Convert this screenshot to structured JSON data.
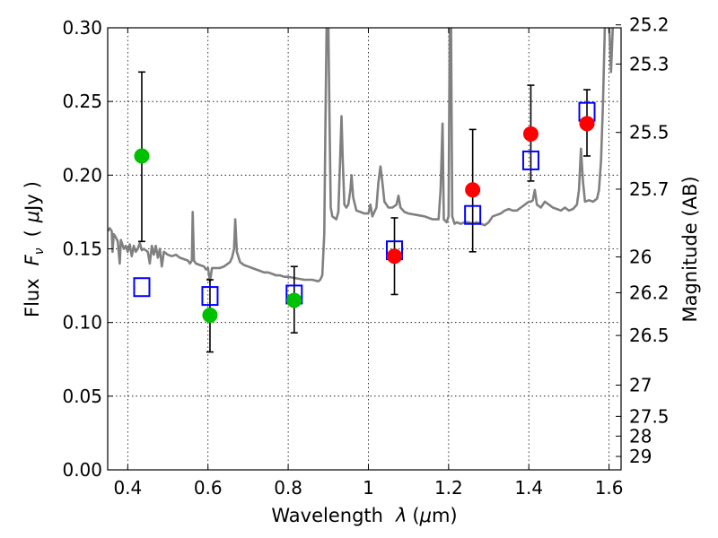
{
  "chart_data": {
    "type": "scatter",
    "xlabel_text": "Wavelength",
    "xlabel_symbol": "λ",
    "xlabel_unit_open": "(",
    "xlabel_unit_mu": "μ",
    "xlabel_unit_rest": "m)",
    "ylabel_text": "Flux",
    "ylabel_symbol": "F",
    "ylabel_sub": "ν",
    "ylabel_unit_open": "(",
    "ylabel_unit_mu": "μ",
    "ylabel_unit_rest": "Jy",
    "ylabel_unit_close": ")",
    "ylabel_right": "Magnitude (AB)",
    "xlim": [
      0.35,
      1.63
    ],
    "ylim": [
      0.0,
      0.3
    ],
    "grid": true,
    "x_ticks": [
      {
        "value": 0.4,
        "label": "0.4"
      },
      {
        "value": 0.6,
        "label": "0.6"
      },
      {
        "value": 0.8,
        "label": "0.8"
      },
      {
        "value": 1.0,
        "label": "1"
      },
      {
        "value": 1.2,
        "label": "1.2"
      },
      {
        "value": 1.4,
        "label": "1.4"
      },
      {
        "value": 1.6,
        "label": "1.6"
      }
    ],
    "y_ticks": [
      {
        "value": 0.0,
        "label": "0.00"
      },
      {
        "value": 0.05,
        "label": "0.05"
      },
      {
        "value": 0.1,
        "label": "0.10"
      },
      {
        "value": 0.15,
        "label": "0.15"
      },
      {
        "value": 0.2,
        "label": "0.20"
      },
      {
        "value": 0.25,
        "label": "0.25"
      },
      {
        "value": 0.3,
        "label": "0.30"
      }
    ],
    "mag_ticks": [
      {
        "label": "25.2",
        "flux": 0.302
      },
      {
        "label": "25.3",
        "flux": 0.2754
      },
      {
        "label": "25.5",
        "flux": 0.229
      },
      {
        "label": "25.7",
        "flux": 0.1905
      },
      {
        "label": "26",
        "flux": 0.1445
      },
      {
        "label": "26.2",
        "flux": 0.1202
      },
      {
        "label": "26.5",
        "flux": 0.0912
      },
      {
        "label": "27",
        "flux": 0.0575
      },
      {
        "label": "27.5",
        "flux": 0.0363
      },
      {
        "label": "28",
        "flux": 0.0229
      },
      {
        "label": "29",
        "flux": 0.0091
      }
    ],
    "series": [
      {
        "kind": "line",
        "color": "#808080",
        "points": [
          [
            0.35,
            0.162
          ],
          [
            0.355,
            0.164
          ],
          [
            0.36,
            0.162
          ],
          [
            0.362,
            0.148
          ],
          [
            0.365,
            0.16
          ],
          [
            0.37,
            0.158
          ],
          [
            0.375,
            0.155
          ],
          [
            0.38,
            0.14
          ],
          [
            0.383,
            0.156
          ],
          [
            0.39,
            0.15
          ],
          [
            0.395,
            0.152
          ],
          [
            0.4,
            0.148
          ],
          [
            0.405,
            0.153
          ],
          [
            0.41,
            0.145
          ],
          [
            0.415,
            0.152
          ],
          [
            0.42,
            0.148
          ],
          [
            0.425,
            0.15
          ],
          [
            0.43,
            0.154
          ],
          [
            0.435,
            0.149
          ],
          [
            0.44,
            0.15
          ],
          [
            0.45,
            0.148
          ],
          [
            0.455,
            0.14
          ],
          [
            0.46,
            0.152
          ],
          [
            0.465,
            0.146
          ],
          [
            0.47,
            0.152
          ],
          [
            0.475,
            0.144
          ],
          [
            0.48,
            0.15
          ],
          [
            0.485,
            0.138
          ],
          [
            0.49,
            0.148
          ],
          [
            0.5,
            0.146
          ],
          [
            0.51,
            0.145
          ],
          [
            0.52,
            0.146
          ],
          [
            0.53,
            0.144
          ],
          [
            0.54,
            0.143
          ],
          [
            0.55,
            0.142
          ],
          [
            0.555,
            0.14
          ],
          [
            0.56,
            0.142
          ],
          [
            0.562,
            0.175
          ],
          [
            0.565,
            0.142
          ],
          [
            0.57,
            0.14
          ],
          [
            0.58,
            0.139
          ],
          [
            0.59,
            0.138
          ],
          [
            0.595,
            0.136
          ],
          [
            0.6,
            0.137
          ],
          [
            0.605,
            0.128
          ],
          [
            0.61,
            0.137
          ],
          [
            0.62,
            0.137
          ],
          [
            0.63,
            0.137
          ],
          [
            0.64,
            0.138
          ],
          [
            0.65,
            0.14
          ],
          [
            0.655,
            0.141
          ],
          [
            0.66,
            0.144
          ],
          [
            0.665,
            0.15
          ],
          [
            0.668,
            0.17
          ],
          [
            0.672,
            0.148
          ],
          [
            0.68,
            0.141
          ],
          [
            0.69,
            0.139
          ],
          [
            0.7,
            0.138
          ],
          [
            0.71,
            0.137
          ],
          [
            0.72,
            0.136
          ],
          [
            0.73,
            0.135
          ],
          [
            0.74,
            0.134
          ],
          [
            0.75,
            0.134
          ],
          [
            0.76,
            0.133
          ],
          [
            0.77,
            0.132
          ],
          [
            0.78,
            0.132
          ],
          [
            0.79,
            0.131
          ],
          [
            0.8,
            0.131
          ],
          [
            0.82,
            0.13
          ],
          [
            0.84,
            0.129
          ],
          [
            0.86,
            0.129
          ],
          [
            0.875,
            0.128
          ],
          [
            0.88,
            0.129
          ],
          [
            0.885,
            0.132
          ],
          [
            0.89,
            0.16
          ],
          [
            0.893,
            0.24
          ],
          [
            0.896,
            0.305
          ],
          [
            0.9,
            0.305
          ],
          [
            0.903,
            0.24
          ],
          [
            0.906,
            0.178
          ],
          [
            0.91,
            0.172
          ],
          [
            0.92,
            0.17
          ],
          [
            0.925,
            0.175
          ],
          [
            0.93,
            0.215
          ],
          [
            0.933,
            0.24
          ],
          [
            0.936,
            0.21
          ],
          [
            0.94,
            0.18
          ],
          [
            0.945,
            0.178
          ],
          [
            0.95,
            0.18
          ],
          [
            0.955,
            0.19
          ],
          [
            0.958,
            0.2
          ],
          [
            0.962,
            0.185
          ],
          [
            0.97,
            0.176
          ],
          [
            0.98,
            0.175
          ],
          [
            0.99,
            0.174
          ],
          [
            1.0,
            0.174
          ],
          [
            1.005,
            0.18
          ],
          [
            1.01,
            0.172
          ],
          [
            1.02,
            0.178
          ],
          [
            1.025,
            0.195
          ],
          [
            1.03,
            0.206
          ],
          [
            1.035,
            0.195
          ],
          [
            1.04,
            0.182
          ],
          [
            1.05,
            0.178
          ],
          [
            1.06,
            0.178
          ],
          [
            1.07,
            0.18
          ],
          [
            1.075,
            0.186
          ],
          [
            1.08,
            0.178
          ],
          [
            1.09,
            0.175
          ],
          [
            1.1,
            0.174
          ],
          [
            1.12,
            0.173
          ],
          [
            1.14,
            0.172
          ],
          [
            1.16,
            0.17
          ],
          [
            1.175,
            0.17
          ],
          [
            1.18,
            0.19
          ],
          [
            1.185,
            0.235
          ],
          [
            1.188,
            0.17
          ],
          [
            1.195,
            0.168
          ],
          [
            1.2,
            0.172
          ],
          [
            1.203,
            0.305
          ],
          [
            1.206,
            0.305
          ],
          [
            1.209,
            0.172
          ],
          [
            1.215,
            0.167
          ],
          [
            1.22,
            0.168
          ],
          [
            1.23,
            0.167
          ],
          [
            1.24,
            0.168
          ],
          [
            1.25,
            0.168
          ],
          [
            1.26,
            0.167
          ],
          [
            1.27,
            0.168
          ],
          [
            1.28,
            0.167
          ],
          [
            1.29,
            0.166
          ],
          [
            1.3,
            0.168
          ],
          [
            1.31,
            0.172
          ],
          [
            1.32,
            0.173
          ],
          [
            1.33,
            0.174
          ],
          [
            1.34,
            0.176
          ],
          [
            1.35,
            0.177
          ],
          [
            1.36,
            0.176
          ],
          [
            1.37,
            0.176
          ],
          [
            1.38,
            0.178
          ],
          [
            1.39,
            0.18
          ],
          [
            1.4,
            0.182
          ],
          [
            1.405,
            0.182
          ],
          [
            1.41,
            0.183
          ],
          [
            1.415,
            0.19
          ],
          [
            1.42,
            0.18
          ],
          [
            1.43,
            0.178
          ],
          [
            1.44,
            0.182
          ],
          [
            1.45,
            0.18
          ],
          [
            1.46,
            0.178
          ],
          [
            1.47,
            0.177
          ],
          [
            1.48,
            0.176
          ],
          [
            1.49,
            0.178
          ],
          [
            1.5,
            0.176
          ],
          [
            1.51,
            0.177
          ],
          [
            1.52,
            0.18
          ],
          [
            1.525,
            0.19
          ],
          [
            1.53,
            0.218
          ],
          [
            1.535,
            0.196
          ],
          [
            1.54,
            0.182
          ],
          [
            1.55,
            0.183
          ],
          [
            1.56,
            0.182
          ],
          [
            1.57,
            0.184
          ],
          [
            1.575,
            0.19
          ],
          [
            1.58,
            0.21
          ],
          [
            1.585,
            0.25
          ],
          [
            1.59,
            0.305
          ],
          [
            1.6,
            0.305
          ],
          [
            1.605,
            0.27
          ],
          [
            1.61,
            0.305
          ],
          [
            1.63,
            0.305
          ]
        ]
      },
      {
        "kind": "errorbar",
        "color": "#000000",
        "points": [
          {
            "x": 0.435,
            "low": 0.155,
            "high": 0.27
          },
          {
            "x": 0.605,
            "low": 0.08,
            "high": 0.129
          },
          {
            "x": 0.815,
            "low": 0.093,
            "high": 0.138
          },
          {
            "x": 1.065,
            "low": 0.119,
            "high": 0.171
          },
          {
            "x": 1.26,
            "low": 0.148,
            "high": 0.231
          },
          {
            "x": 1.405,
            "low": 0.196,
            "high": 0.261
          },
          {
            "x": 1.545,
            "low": 0.213,
            "high": 0.258
          }
        ]
      },
      {
        "kind": "marker",
        "marker": "square",
        "color": "#0000ff",
        "points": [
          [
            0.435,
            0.124
          ],
          [
            0.605,
            0.118
          ],
          [
            0.815,
            0.119
          ],
          [
            1.065,
            0.149
          ],
          [
            1.26,
            0.173
          ],
          [
            1.405,
            0.21
          ],
          [
            1.545,
            0.243
          ]
        ]
      },
      {
        "kind": "marker",
        "marker": "circle",
        "color": "#00c000",
        "points": [
          [
            0.435,
            0.213
          ],
          [
            0.605,
            0.105
          ],
          [
            0.815,
            0.115
          ]
        ]
      },
      {
        "kind": "marker",
        "marker": "circle",
        "color": "#ff0000",
        "points": [
          [
            1.065,
            0.145
          ],
          [
            1.26,
            0.19
          ],
          [
            1.405,
            0.228
          ],
          [
            1.545,
            0.235
          ]
        ]
      }
    ]
  }
}
